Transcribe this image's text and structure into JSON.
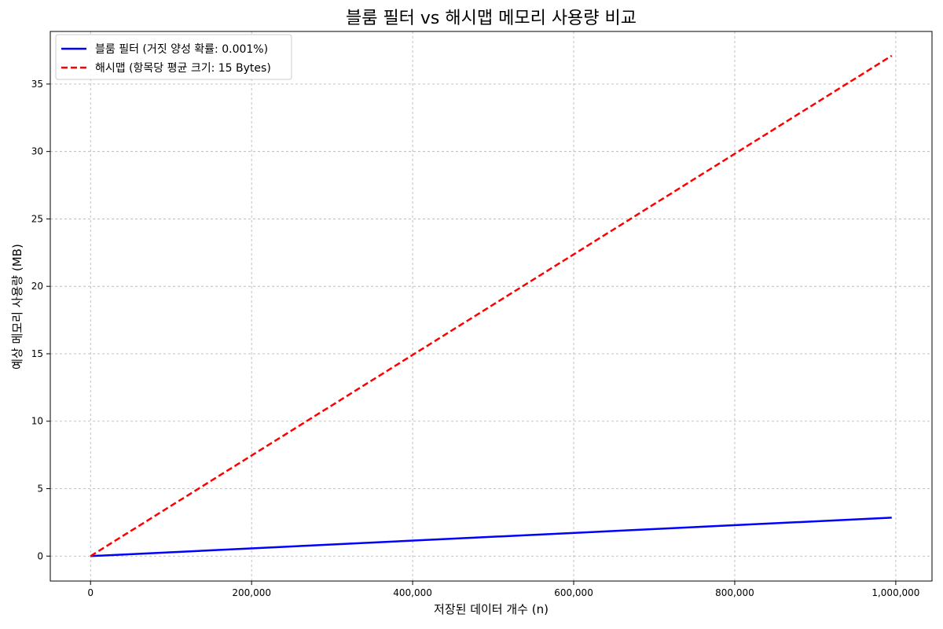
{
  "chart_data": {
    "type": "line",
    "title": "블룸 필터 vs 해시맵 메모리 사용량 비교",
    "xlabel": "저장된 데이터 개수 (n)",
    "ylabel": "예상 메모리 사용량 (MB)",
    "xlim": [
      -50000,
      1045000
    ],
    "ylim": [
      -1.85,
      38.9
    ],
    "grid": true,
    "legend_position": "top-left",
    "x_ticks": [
      0,
      200000,
      400000,
      600000,
      800000,
      1000000
    ],
    "x_tick_labels": [
      "0",
      "200,000",
      "400,000",
      "600,000",
      "800,000",
      "1,000,000"
    ],
    "y_ticks": [
      0,
      5,
      10,
      15,
      20,
      25,
      30,
      35
    ],
    "y_tick_labels": [
      "0",
      "5",
      "10",
      "15",
      "20",
      "25",
      "30",
      "35"
    ],
    "series": [
      {
        "name": "블룸 필터 (거짓 양성 확률: 0.001%)",
        "color": "#0000ff",
        "style": "solid",
        "x": [
          0,
          995000
        ],
        "y": [
          0,
          2.85
        ]
      },
      {
        "name": "해시맵 (항목당 평균 크기: 15 Bytes)",
        "color": "#ff0000",
        "style": "dashed",
        "x": [
          0,
          995000
        ],
        "y": [
          0,
          37.1
        ]
      }
    ]
  }
}
